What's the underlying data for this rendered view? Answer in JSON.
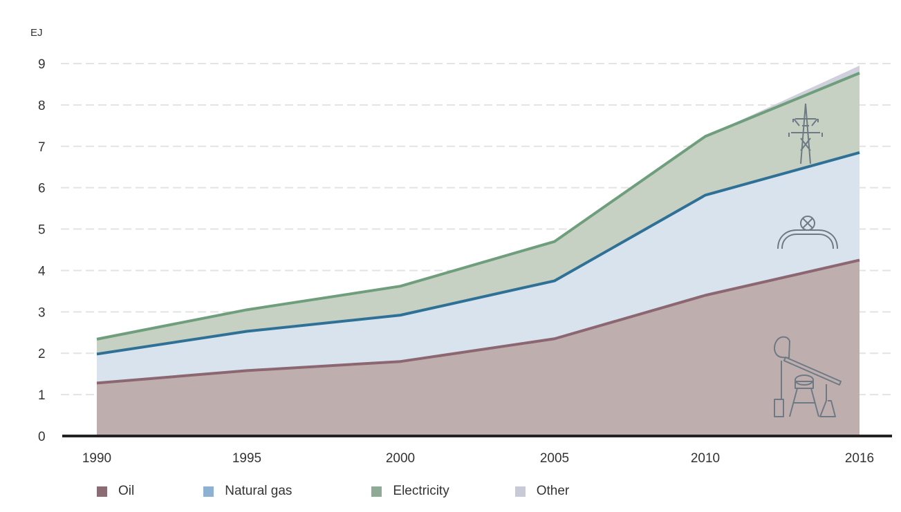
{
  "chart_data": {
    "type": "area",
    "stacked": true,
    "unit_label": "EJ",
    "x": [
      "1990",
      "1995",
      "2000",
      "2005",
      "2010",
      "2016"
    ],
    "ylim": [
      0,
      9
    ],
    "yticks": [
      0,
      1,
      2,
      3,
      4,
      5,
      6,
      7,
      8,
      9
    ],
    "grid": "horizontal dashed",
    "legend_position": "bottom",
    "series": [
      {
        "name": "Oil",
        "color": "#bfaeae",
        "line_color": "#8c6670",
        "values": [
          1.28,
          1.58,
          1.8,
          2.35,
          3.4,
          4.25
        ]
      },
      {
        "name": "Natural gas",
        "color": "#d8e3ee",
        "line_color": "#2f7196",
        "values": [
          0.7,
          0.95,
          1.12,
          1.4,
          2.42,
          2.6
        ]
      },
      {
        "name": "Electricity",
        "color": "#c6d1c3",
        "line_color": "#6f9e7c",
        "values": [
          0.36,
          0.52,
          0.7,
          0.95,
          1.42,
          1.92
        ]
      },
      {
        "name": "Other",
        "color": "#cfd0dc",
        "line_color": "#cfd0dc",
        "values": [
          0,
          0,
          0,
          0,
          0,
          0.18
        ]
      }
    ],
    "icons": [
      "oil-pump-icon",
      "gas-pipeline-icon",
      "power-pylon-icon"
    ]
  }
}
